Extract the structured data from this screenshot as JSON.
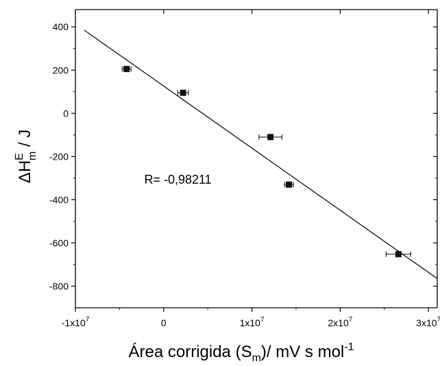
{
  "chart_data": {
    "type": "scatter",
    "xlabel": {
      "main": "Área corrigida (S",
      "sub": "m",
      "rest": ")/ mV s mol",
      "sup": "-1"
    },
    "ylabel": {
      "delta": "ΔH",
      "sup": "E",
      "sub": "m",
      "rest": "  /  J"
    },
    "xlim": [
      -10000000,
      31000000
    ],
    "ylim": [
      -900,
      480
    ],
    "x_ticks": [
      {
        "value": -10000000,
        "base": "-1x10",
        "exp": "7"
      },
      {
        "value": 0,
        "base": "0",
        "exp": ""
      },
      {
        "value": 10000000,
        "base": "1x10",
        "exp": "7"
      },
      {
        "value": 20000000,
        "base": "2x10",
        "exp": "7"
      },
      {
        "value": 30000000,
        "base": "3x10",
        "exp": "7"
      }
    ],
    "y_ticks": [
      400,
      200,
      0,
      -200,
      -400,
      -600,
      -800
    ],
    "y_tick_labels": [
      "400",
      "200",
      "0",
      "-200",
      "-400",
      "-600",
      "-800"
    ],
    "y_minor_ticks": [
      300,
      100,
      -100,
      -300,
      -500,
      -700
    ],
    "x_minor_ticks": [
      -5000000,
      5000000,
      15000000,
      25000000
    ],
    "points": [
      {
        "x": -4200000,
        "y": 205,
        "xerr": 500000
      },
      {
        "x": 2200000,
        "y": 95,
        "xerr": 600000
      },
      {
        "x": 12100000,
        "y": -110,
        "xerr": 1300000
      },
      {
        "x": 14200000,
        "y": -330,
        "xerr": 500000
      },
      {
        "x": 26600000,
        "y": -652,
        "xerr": 1400000
      }
    ],
    "fit_line": {
      "x": [
        -9000000,
        31000000
      ],
      "y": [
        385,
        -765
      ]
    },
    "annotation": "R= -0,98211",
    "annotation_pos": {
      "x": -2200000,
      "y": -325
    },
    "grid": false,
    "colors": {
      "marker": "#111111",
      "line": "#000000",
      "axis": "#000000"
    }
  }
}
